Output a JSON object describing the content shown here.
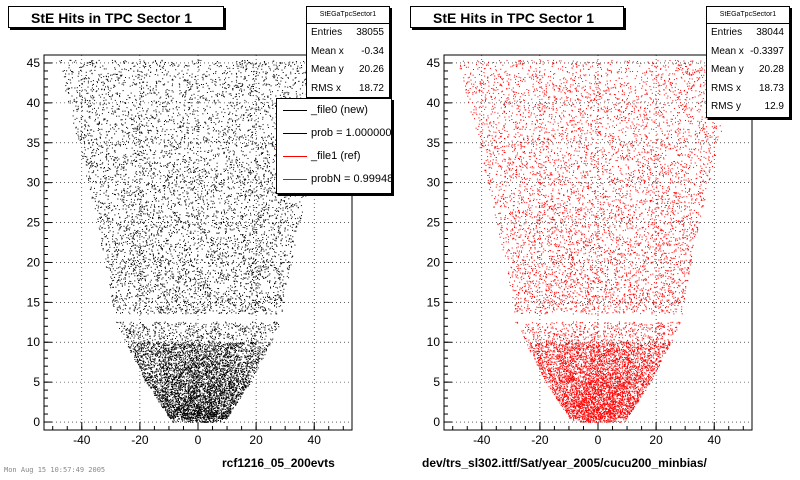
{
  "chart_data": [
    {
      "type": "scatter",
      "title": "StE Hits in TPC Sector 1",
      "xlim": [
        -53,
        53
      ],
      "ylim": [
        -1,
        46
      ],
      "x_ticks": [
        -40,
        -20,
        0,
        20,
        40
      ],
      "y_ticks": [
        0,
        5,
        10,
        15,
        20,
        25,
        30,
        35,
        40,
        45
      ],
      "x_tick_labels": [
        "-40",
        "-20",
        "0",
        "20",
        "40"
      ],
      "y_tick_labels": [
        "0",
        "5",
        "10",
        "15",
        "20",
        "25",
        "30",
        "35",
        "40",
        "45"
      ],
      "grid": true,
      "marker_color": "#000000",
      "x_half_width_at_row": [
        [
          0,
          9
        ],
        [
          5,
          18
        ],
        [
          10,
          25
        ],
        [
          13,
          29
        ],
        [
          14,
          29
        ],
        [
          20,
          32
        ],
        [
          30,
          38
        ],
        [
          45,
          48
        ]
      ],
      "gap_rows": [
        [
          12.6,
          13.6
        ]
      ],
      "dense_center_rows": [
        0,
        10
      ],
      "stats": {
        "header": "StEGaTpcSector1",
        "rows": [
          {
            "label": "Entries",
            "value": "38055"
          },
          {
            "label": "Mean x",
            "value": "-0.34"
          },
          {
            "label": "Mean y",
            "value": "20.26"
          },
          {
            "label": "RMS x",
            "value": "18.72"
          }
        ]
      },
      "legend": {
        "entries": [
          {
            "label": "_file0 (new)",
            "color": "#000000"
          },
          {
            "label": "prob = 1.000000",
            "color": "#000000"
          },
          {
            "label": "_file1 (ref)",
            "color": "#ff0000"
          },
          {
            "label": "probN = 0.999483",
            "color": "#ff0000"
          }
        ]
      },
      "bottom_label": "rcf1216_05_200evts"
    },
    {
      "type": "scatter",
      "title": "StE Hits in TPC Sector 1",
      "xlim": [
        -53,
        53
      ],
      "ylim": [
        -1,
        46
      ],
      "x_ticks": [
        -40,
        -20,
        0,
        20,
        40
      ],
      "y_ticks": [
        0,
        5,
        10,
        15,
        20,
        25,
        30,
        35,
        40,
        45
      ],
      "x_tick_labels": [
        "-40",
        "-20",
        "0",
        "20",
        "40"
      ],
      "y_tick_labels": [
        "0",
        "5",
        "10",
        "15",
        "20",
        "25",
        "30",
        "35",
        "40",
        "45"
      ],
      "grid": true,
      "marker_color": "#ff0000",
      "x_half_width_at_row": [
        [
          0,
          9
        ],
        [
          5,
          18
        ],
        [
          10,
          25
        ],
        [
          13,
          29
        ],
        [
          14,
          29
        ],
        [
          20,
          32
        ],
        [
          30,
          38
        ],
        [
          45,
          48
        ]
      ],
      "gap_rows": [
        [
          12.6,
          13.6
        ]
      ],
      "dense_center_rows": [
        0,
        10
      ],
      "stats": {
        "header": "StEGaTpcSector1",
        "rows": [
          {
            "label": "Entries",
            "value": "38044"
          },
          {
            "label": "Mean x",
            "value": "-0.3397"
          },
          {
            "label": "Mean y",
            "value": "20.28"
          },
          {
            "label": "RMS x",
            "value": "18.73"
          },
          {
            "label": "RMS y",
            "value": "12.9"
          }
        ]
      },
      "bottom_label": "dev/trs_sl302.ittf/Sat/year_2005/cucu200_minbias/"
    }
  ],
  "footnote": "Mon Aug 15 10:57:49 2005"
}
